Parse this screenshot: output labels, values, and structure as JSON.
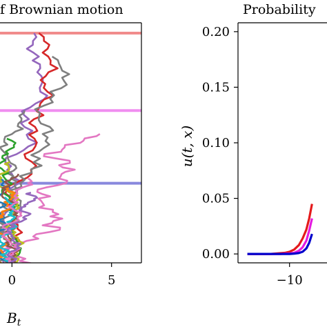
{
  "chart_data": [
    {
      "type": "line",
      "title": "f Brownian motion",
      "xlabel": "B_t",
      "ylabel": "",
      "xticks": [
        0,
        5
      ],
      "tick_labels": [
        "0",
        "5"
      ],
      "xlim": [
        -0.6,
        6.5
      ],
      "ylim": [
        0,
        1
      ],
      "grid": false,
      "levels": [
        {
          "y": 0.0,
          "color": "#f08080"
        },
        {
          "y": 0.33,
          "color": "#ee82ee"
        },
        {
          "y": 0.64,
          "color": "#7b7bd9"
        }
      ],
      "paths": [
        {
          "color": "#9467bd",
          "seed": 11,
          "end": 0.0,
          "drift": 1.9,
          "scale": 0.55
        },
        {
          "color": "#d62728",
          "seed": 23,
          "end": 0.0,
          "drift": 2.9,
          "scale": 0.55
        },
        {
          "color": "#7f7f7f",
          "seed": 37,
          "end": 0.1,
          "drift": 3.1,
          "scale": 0.6
        },
        {
          "color": "#e377c2",
          "seed": 41,
          "end": 0.43,
          "drift": 3.4,
          "scale": 0.9
        },
        {
          "color": "#7f7f7f",
          "seed": 53,
          "end": 0.33,
          "drift": 1.2,
          "scale": 0.45
        },
        {
          "color": "#1f77b4",
          "seed": 67,
          "end": 0.36,
          "drift": -0.6,
          "scale": 0.5
        },
        {
          "color": "#2ca02c",
          "seed": 71,
          "end": 0.45,
          "drift": -0.3,
          "scale": 0.35
        },
        {
          "color": "#bcbd22",
          "seed": 83,
          "end": 0.55,
          "drift": 0.2,
          "scale": 0.3
        },
        {
          "color": "#ff7f0e",
          "seed": 97,
          "end": 0.65,
          "drift": -0.2,
          "scale": 0.3
        },
        {
          "color": "#8c564b",
          "seed": 101,
          "end": 0.6,
          "drift": 0.4,
          "scale": 0.3
        },
        {
          "color": "#17becf",
          "seed": 113,
          "end": 0.7,
          "drift": -0.3,
          "scale": 0.25
        },
        {
          "color": "#e377c2",
          "seed": 127,
          "end": 0.62,
          "drift": 0.8,
          "scale": 0.35
        },
        {
          "color": "#9467bd",
          "seed": 131,
          "end": 0.68,
          "drift": 1.0,
          "scale": 0.3
        }
      ]
    },
    {
      "type": "line",
      "title": "Probability",
      "xlabel": "",
      "ylabel": "u(t, x)",
      "xticks": [
        -10
      ],
      "tick_labels": [
        "−10"
      ],
      "yticks": [
        0.0,
        0.05,
        0.1,
        0.15,
        0.2
      ],
      "ytick_labels": [
        "0.00",
        "0.05",
        "0.10",
        "0.15",
        "0.20"
      ],
      "xlim": [
        -15.5,
        -6
      ],
      "ylim": [
        -0.008,
        0.208
      ],
      "grid": false,
      "series": [
        {
          "color": "#e41a1c",
          "x": [
            -14.5,
            -12,
            -10.5,
            -10,
            -9.5,
            -9,
            -8.6,
            -8.2,
            -7.9,
            -7.6
          ],
          "y": [
            0.0,
            0.0,
            0.001,
            0.002,
            0.004,
            0.008,
            0.014,
            0.022,
            0.032,
            0.045
          ]
        },
        {
          "color": "#e41ae1",
          "x": [
            -14.5,
            -11,
            -10,
            -9.5,
            -9,
            -8.6,
            -8.2,
            -7.9,
            -7.6
          ],
          "y": [
            0.0,
            0.0,
            0.0005,
            0.001,
            0.003,
            0.006,
            0.012,
            0.021,
            0.032
          ]
        },
        {
          "color": "#0000cc",
          "x": [
            -14.5,
            -10,
            -9.5,
            -9,
            -8.6,
            -8.2,
            -7.9,
            -7.6
          ],
          "y": [
            0.0,
            0.0,
            0.0003,
            0.0008,
            0.002,
            0.005,
            0.01,
            0.018
          ]
        }
      ]
    }
  ]
}
